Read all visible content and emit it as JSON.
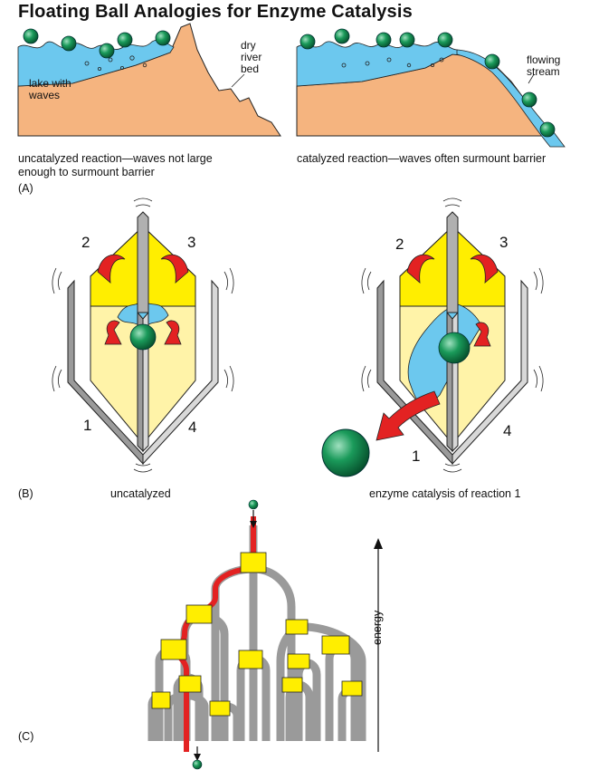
{
  "title": "Floating Ball Analogies for Enzyme Catalysis",
  "panel_a": {
    "letter": "(A)",
    "left": {
      "lake_label_1": "lake with",
      "lake_label_2": "waves",
      "dry_label_1": "dry",
      "dry_label_2": "river",
      "dry_label_3": "bed",
      "caption_1": "uncatalyzed reaction—waves not large",
      "caption_2": "enough to surmount barrier"
    },
    "right": {
      "stream_label_1": "flowing",
      "stream_label_2": "stream",
      "caption": "catalyzed reaction—waves often surmount barrier"
    }
  },
  "panel_b": {
    "letter": "(B)",
    "left": {
      "n1": "1",
      "n2": "2",
      "n3": "3",
      "n4": "4",
      "caption": "uncatalyzed"
    },
    "right": {
      "n1": "1",
      "n2": "2",
      "n3": "3",
      "n4": "4",
      "caption": "enzyme catalysis of reaction 1"
    }
  },
  "panel_c": {
    "letter": "(C)",
    "axis_label": "energy"
  },
  "colors": {
    "water": "#6cc8ee",
    "land": "#f5b47f",
    "ball": "#138a4f",
    "yellow": "#ffee00",
    "light_yellow": "#fff3a8",
    "red": "#e32222",
    "wall_gray": "#9a9a9a"
  }
}
